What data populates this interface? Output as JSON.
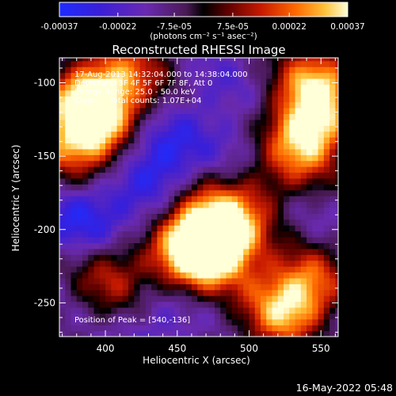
{
  "chart_data": {
    "type": "heatmap",
    "title": "Reconstructed RHESSI Image",
    "xlabel": "Heliocentric X (arcsec)",
    "ylabel": "Heliocentric Y (arcsec)",
    "xlim": [
      368,
      562
    ],
    "ylim": [
      -273,
      -83
    ],
    "x_ticks": [
      400,
      450,
      500,
      550
    ],
    "y_ticks": [
      -100,
      -150,
      -200,
      -250
    ],
    "colorbar": {
      "range": [
        -0.00037,
        0.00037
      ],
      "tick_values": [
        -0.00037,
        -0.00022,
        -7.5e-05,
        7.5e-05,
        0.00022,
        0.00037
      ],
      "tick_labels": [
        "-0.00037",
        "-0.00022",
        "-7.5e-05",
        "7.5e-05",
        "0.00022",
        "0.00037"
      ],
      "unit_label": "(photons cm⁻² s⁻¹ asec⁻²)"
    },
    "annotations": [
      "17-Aug-2013 14:32:04.000 to 14:38:04.000",
      "Detectors: 3F 4F 5F 6F 7F 8F, Att 0",
      "Energy Range: 25.0 - 50.0 keV",
      "Clean     Total counts: 1.07E+04"
    ],
    "peak_label": "Position of Peak = [540,-136]",
    "peak_position": [
      540,
      -136
    ],
    "bright_regions": [
      {
        "x": 392,
        "y": -112,
        "value": 0.00037
      },
      {
        "x": 382,
        "y": -140,
        "value": 0.0003
      },
      {
        "x": 470,
        "y": -200,
        "value": 0.00033
      },
      {
        "x": 485,
        "y": -208,
        "value": 0.00025
      },
      {
        "x": 455,
        "y": -220,
        "value": 0.0002
      },
      {
        "x": 540,
        "y": -136,
        "value": 0.00037
      },
      {
        "x": 548,
        "y": -100,
        "value": 0.00028
      },
      {
        "x": 540,
        "y": -240,
        "value": 0.00026
      },
      {
        "x": 520,
        "y": -260,
        "value": 0.00018
      },
      {
        "x": 405,
        "y": -230,
        "value": 0.00015
      },
      {
        "x": 420,
        "y": -95,
        "value": 0.00012
      },
      {
        "x": 510,
        "y": -170,
        "value": 8e-05
      }
    ],
    "dark_regions": [
      {
        "x": 440,
        "y": -150,
        "value": -0.00035
      },
      {
        "x": 385,
        "y": -190,
        "value": -0.00033
      },
      {
        "x": 420,
        "y": -195,
        "value": -0.00022
      },
      {
        "x": 500,
        "y": -150,
        "value": -0.00022
      },
      {
        "x": 475,
        "y": -105,
        "value": -0.0002
      },
      {
        "x": 440,
        "y": -255,
        "value": -0.00025
      },
      {
        "x": 530,
        "y": -195,
        "value": -0.00018
      },
      {
        "x": 550,
        "y": -270,
        "value": -0.0002
      }
    ]
  },
  "footer": {
    "timestamp": "16-May-2022 05:48"
  }
}
